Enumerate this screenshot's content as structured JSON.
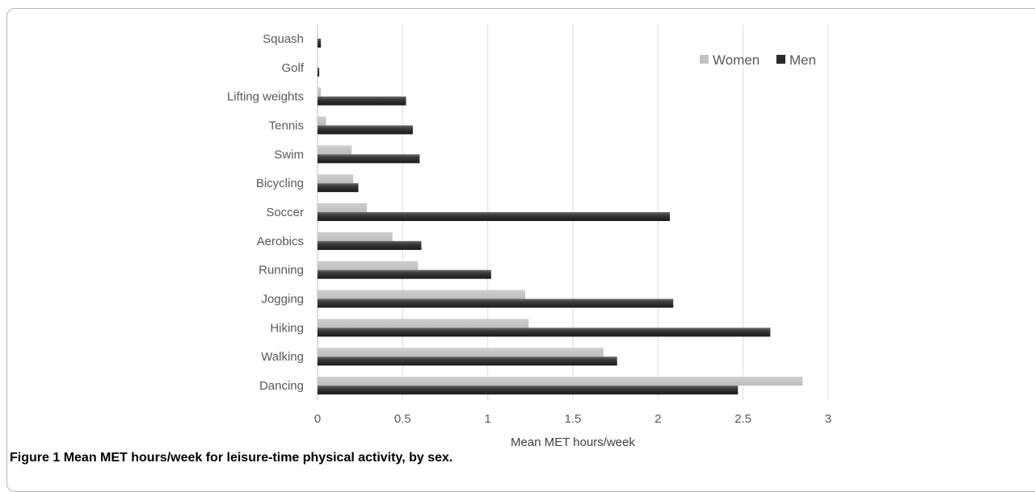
{
  "chart_data": {
    "type": "bar",
    "orientation": "horizontal",
    "categories": [
      "Squash",
      "Golf",
      "Lifting weights",
      "Tennis",
      "Swim",
      "Bicycling",
      "Soccer",
      "Aerobics",
      "Running",
      "Jogging",
      "Hiking",
      "Walking",
      "Dancing"
    ],
    "series": [
      {
        "name": "Women",
        "color": "#c3c3c3",
        "values": [
          0.0,
          0.0,
          0.02,
          0.05,
          0.2,
          0.21,
          0.29,
          0.44,
          0.59,
          1.22,
          1.24,
          1.68,
          2.85
        ]
      },
      {
        "name": "Men",
        "color": "#2a2a2a",
        "values": [
          0.02,
          0.01,
          0.52,
          0.56,
          0.6,
          0.24,
          2.07,
          0.61,
          1.02,
          2.09,
          2.66,
          1.76,
          2.47
        ]
      }
    ],
    "xlabel": "Mean MET hours/week",
    "xlim": [
      0,
      3
    ],
    "xticks": [
      "0",
      "0.5",
      "1",
      "1.5",
      "2",
      "2.5",
      "3"
    ],
    "grid": "vertical",
    "legend": "top-right"
  },
  "caption": {
    "label": "Figure 1",
    "text": "Mean MET hours/week for leisure-time physical activity, by sex."
  }
}
